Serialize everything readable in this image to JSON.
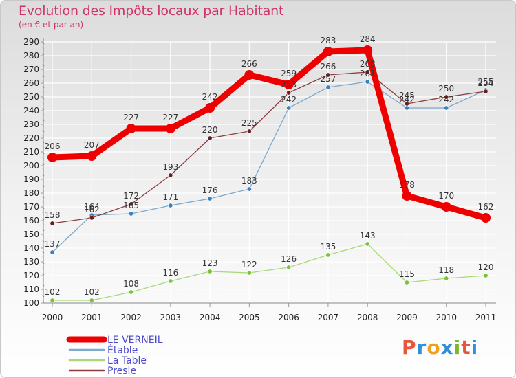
{
  "header": {
    "title": "Evolution des Impôts locaux par Habitant",
    "subtitle": "(en € et par an)"
  },
  "logo": {
    "letters": [
      "P",
      "r",
      "o",
      "x",
      "i",
      "t",
      "i"
    ],
    "colors": [
      "#e8553a",
      "#2f8fd8",
      "#f0a020",
      "#2f8fd8",
      "#7ab829",
      "#e8553a",
      "#2f8fd8"
    ]
  },
  "chart_data": {
    "type": "line",
    "x": [
      "2000",
      "2001",
      "2002",
      "2003",
      "2004",
      "2005",
      "2006",
      "2007",
      "2008",
      "2009",
      "2010",
      "2011"
    ],
    "ylim": [
      100,
      290
    ],
    "yticks": [
      100,
      110,
      120,
      130,
      140,
      150,
      160,
      170,
      180,
      190,
      200,
      210,
      220,
      230,
      240,
      250,
      260,
      270,
      280,
      290
    ],
    "grid": true,
    "legend_position": "bottom-left",
    "series": [
      {
        "name": "LE VERNEIL",
        "color": "#ee0000",
        "dot": "#ee0000",
        "width": 9,
        "radius": 7,
        "labels": true,
        "values": [
          206,
          207,
          227,
          227,
          242,
          266,
          259,
          283,
          284,
          178,
          170,
          162
        ]
      },
      {
        "name": "Étable",
        "color": "#7da9cc",
        "dot": "#3d7fc0",
        "width": 1.3,
        "radius": 3.2,
        "labels": true,
        "values": [
          137,
          164,
          165,
          171,
          176,
          183,
          242,
          257,
          261,
          242,
          242,
          255
        ]
      },
      {
        "name": "La Table",
        "color": "#a8d878",
        "dot": "#7ac23a",
        "width": 1.3,
        "radius": 3.2,
        "labels": true,
        "values": [
          102,
          102,
          108,
          116,
          123,
          122,
          126,
          135,
          143,
          115,
          118,
          120
        ]
      },
      {
        "name": "Presle",
        "color": "#8b3c3c",
        "dot": "#6a1f1f",
        "width": 1.3,
        "radius": 3.2,
        "labels": true,
        "values": [
          158,
          162,
          172,
          193,
          220,
          225,
          253,
          266,
          268,
          245,
          250,
          254
        ]
      }
    ]
  }
}
